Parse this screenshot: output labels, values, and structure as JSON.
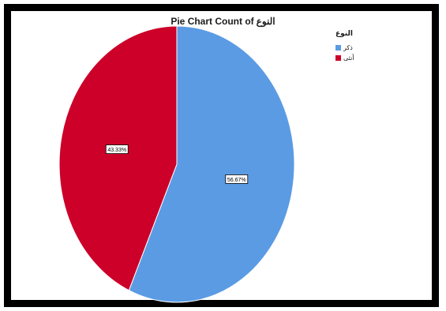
{
  "chart_data": {
    "type": "pie",
    "title": "Pie Chart Count of النوع",
    "title_prefix": "Pie Chart Count of",
    "title_variable": "النوع",
    "legend_title": "النوع",
    "legend_placement": "top-right",
    "slices": [
      {
        "label": "ذكر",
        "value": 56.67,
        "value_label": "56.67%",
        "color": "#5b9be4"
      },
      {
        "label": "أنثى",
        "value": 43.33,
        "value_label": "43.33%",
        "color": "#cc0029"
      }
    ]
  }
}
